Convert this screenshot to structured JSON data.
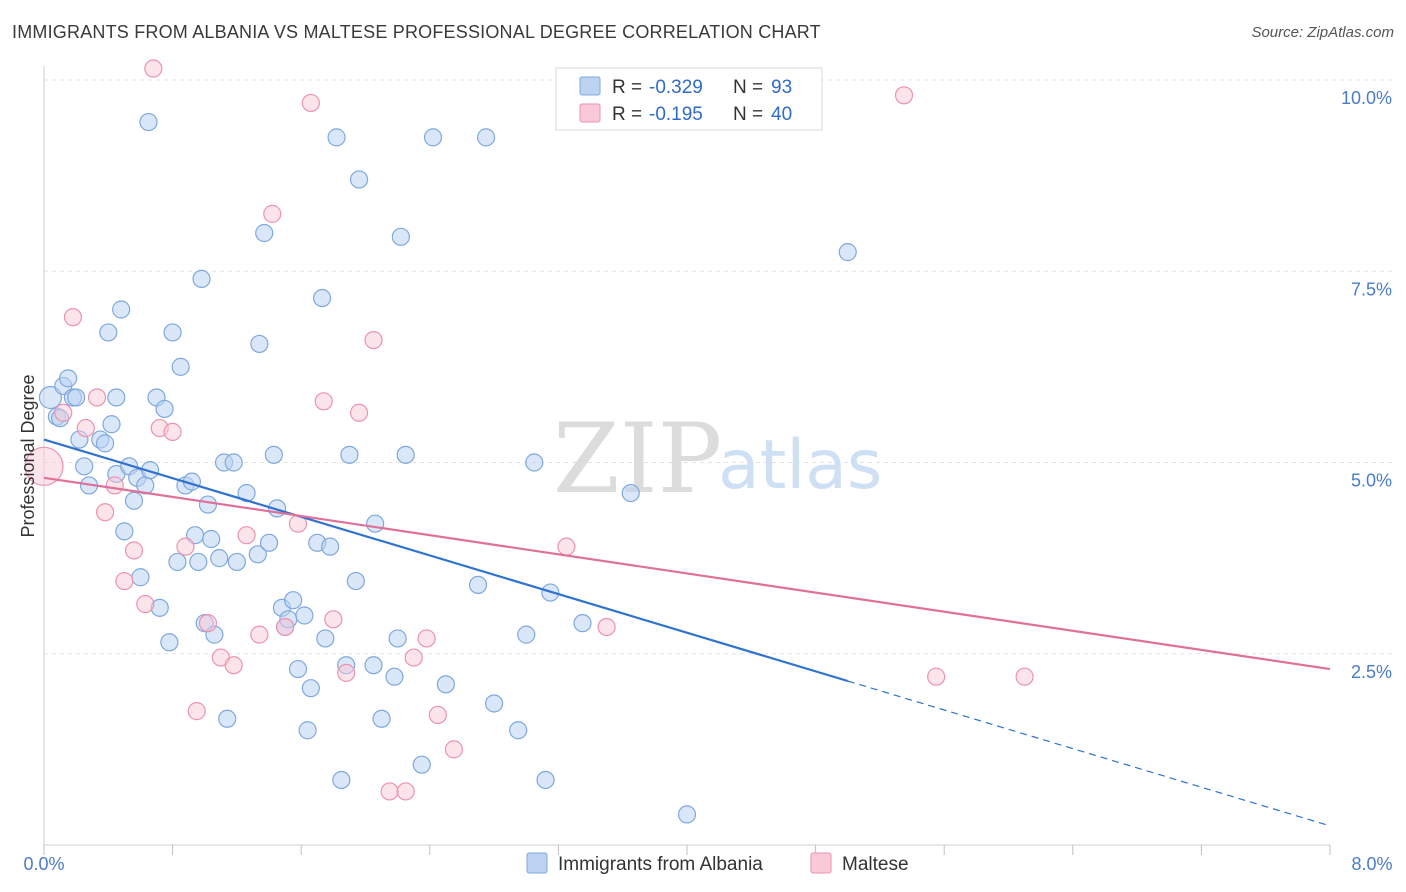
{
  "header": {
    "title": "IMMIGRANTS FROM ALBANIA VS MALTESE PROFESSIONAL DEGREE CORRELATION CHART",
    "source": "Source: ZipAtlas.com"
  },
  "watermark": {
    "zip": "ZIP",
    "atlas": "atlas"
  },
  "legend": {
    "rows": [
      {
        "r_label": "R =",
        "r_value": "-0.329",
        "n_label": "N =",
        "n_value": "93"
      },
      {
        "r_label": "R =",
        "r_value": "-0.195",
        "n_label": "N =",
        "n_value": "40"
      }
    ]
  },
  "colors": {
    "albania_fill": "#bcd3f2",
    "albania_stroke": "#7fa8de",
    "albania_line": "#2f72d0",
    "maltese_fill": "#f9c9d8",
    "maltese_stroke": "#ec93b0",
    "maltese_line": "#e0709a",
    "grid": "#e3e3e3"
  },
  "chart_data": {
    "type": "scatter",
    "title": "IMMIGRANTS FROM ALBANIA VS MALTESE PROFESSIONAL DEGREE CORRELATION CHART",
    "xlabel": "",
    "ylabel": "Professional Degree",
    "xlim": [
      0,
      8
    ],
    "ylim": [
      0,
      10
    ],
    "x_ticks": [
      "0.0%",
      "8.0%"
    ],
    "y_ticks": [
      {
        "value": 2.5,
        "label": "2.5%"
      },
      {
        "value": 5.0,
        "label": "5.0%"
      },
      {
        "value": 7.5,
        "label": "7.5%"
      },
      {
        "value": 10.0,
        "label": "10.0%"
      }
    ],
    "grid": true,
    "legend_position": "top-center",
    "series": [
      {
        "name": "Immigrants from Albania",
        "r": -0.329,
        "n": 93,
        "trend": {
          "x0": 0.0,
          "y0": 5.3,
          "x_solid_end": 5.0,
          "x1": 8.0,
          "y1": 0.25
        },
        "points": [
          [
            0.04,
            5.85
          ],
          [
            0.08,
            5.6
          ],
          [
            0.1,
            5.58
          ],
          [
            0.12,
            6.0
          ],
          [
            0.15,
            6.1
          ],
          [
            0.18,
            5.85
          ],
          [
            0.2,
            5.85
          ],
          [
            0.22,
            5.3
          ],
          [
            0.25,
            4.95
          ],
          [
            0.28,
            4.7
          ],
          [
            0.35,
            5.3
          ],
          [
            0.38,
            5.25
          ],
          [
            0.4,
            6.7
          ],
          [
            0.42,
            5.5
          ],
          [
            0.45,
            4.85
          ],
          [
            0.45,
            5.85
          ],
          [
            0.48,
            7.0
          ],
          [
            0.5,
            4.1
          ],
          [
            0.53,
            4.95
          ],
          [
            0.56,
            4.5
          ],
          [
            0.58,
            4.8
          ],
          [
            0.6,
            3.5
          ],
          [
            0.63,
            4.7
          ],
          [
            0.66,
            4.9
          ],
          [
            0.7,
            5.85
          ],
          [
            0.72,
            3.1
          ],
          [
            0.75,
            5.7
          ],
          [
            0.78,
            2.65
          ],
          [
            0.8,
            6.7
          ],
          [
            0.83,
            3.7
          ],
          [
            0.85,
            6.25
          ],
          [
            0.88,
            4.7
          ],
          [
            0.92,
            4.75
          ],
          [
            0.94,
            4.05
          ],
          [
            0.96,
            3.7
          ],
          [
            0.98,
            7.4
          ],
          [
            1.0,
            2.9
          ],
          [
            1.02,
            4.45
          ],
          [
            1.04,
            4.0
          ],
          [
            1.06,
            2.75
          ],
          [
            1.09,
            3.75
          ],
          [
            1.12,
            5.0
          ],
          [
            1.14,
            1.65
          ],
          [
            1.18,
            5.0
          ],
          [
            1.2,
            3.7
          ],
          [
            1.26,
            4.6
          ],
          [
            1.33,
            3.8
          ],
          [
            1.34,
            6.55
          ],
          [
            1.37,
            8.0
          ],
          [
            1.4,
            3.95
          ],
          [
            1.43,
            5.1
          ],
          [
            1.45,
            4.4
          ],
          [
            1.48,
            3.1
          ],
          [
            1.5,
            2.85
          ],
          [
            1.52,
            2.95
          ],
          [
            1.55,
            3.2
          ],
          [
            1.58,
            2.3
          ],
          [
            1.62,
            3.0
          ],
          [
            1.64,
            1.5
          ],
          [
            1.66,
            2.05
          ],
          [
            1.7,
            3.95
          ],
          [
            1.73,
            7.15
          ],
          [
            1.75,
            2.7
          ],
          [
            1.78,
            3.9
          ],
          [
            1.82,
            9.25
          ],
          [
            1.85,
            0.85
          ],
          [
            1.88,
            2.35
          ],
          [
            1.9,
            5.1
          ],
          [
            1.94,
            3.45
          ],
          [
            1.96,
            8.7
          ],
          [
            2.05,
            2.35
          ],
          [
            2.06,
            4.2
          ],
          [
            2.1,
            1.65
          ],
          [
            2.18,
            2.2
          ],
          [
            2.2,
            2.7
          ],
          [
            2.22,
            7.95
          ],
          [
            2.25,
            5.1
          ],
          [
            2.35,
            1.05
          ],
          [
            2.42,
            9.25
          ],
          [
            2.5,
            2.1
          ],
          [
            2.7,
            3.4
          ],
          [
            2.8,
            1.85
          ],
          [
            2.95,
            1.5
          ],
          [
            3.0,
            2.75
          ],
          [
            3.05,
            5.0
          ],
          [
            3.12,
            0.85
          ],
          [
            3.15,
            3.3
          ],
          [
            3.35,
            2.9
          ],
          [
            3.65,
            4.6
          ],
          [
            4.0,
            0.4
          ],
          [
            5.0,
            7.75
          ],
          [
            0.65,
            9.45
          ],
          [
            2.75,
            9.25
          ]
        ]
      },
      {
        "name": "Maltese",
        "r": -0.195,
        "n": 40,
        "trend": {
          "x0": 0.0,
          "y0": 4.8,
          "x1": 8.0,
          "y1": 2.3
        },
        "points": [
          [
            0.0,
            4.95
          ],
          [
            0.12,
            5.65
          ],
          [
            0.18,
            6.9
          ],
          [
            0.26,
            5.45
          ],
          [
            0.33,
            5.85
          ],
          [
            0.38,
            4.35
          ],
          [
            0.44,
            4.7
          ],
          [
            0.5,
            3.45
          ],
          [
            0.56,
            3.85
          ],
          [
            0.63,
            3.15
          ],
          [
            0.68,
            10.15
          ],
          [
            0.72,
            5.45
          ],
          [
            0.8,
            5.4
          ],
          [
            0.88,
            3.9
          ],
          [
            0.95,
            1.75
          ],
          [
            1.02,
            2.9
          ],
          [
            1.1,
            2.45
          ],
          [
            1.18,
            2.35
          ],
          [
            1.26,
            4.05
          ],
          [
            1.34,
            2.75
          ],
          [
            1.42,
            8.25
          ],
          [
            1.5,
            2.85
          ],
          [
            1.58,
            4.2
          ],
          [
            1.66,
            9.7
          ],
          [
            1.74,
            5.8
          ],
          [
            1.8,
            2.95
          ],
          [
            1.88,
            2.25
          ],
          [
            1.96,
            5.65
          ],
          [
            2.05,
            6.6
          ],
          [
            2.15,
            0.7
          ],
          [
            2.25,
            0.7
          ],
          [
            2.3,
            2.45
          ],
          [
            2.38,
            2.7
          ],
          [
            2.45,
            1.7
          ],
          [
            2.55,
            1.25
          ],
          [
            3.25,
            3.9
          ],
          [
            3.5,
            2.85
          ],
          [
            5.35,
            9.8
          ],
          [
            5.55,
            2.2
          ],
          [
            6.1,
            2.2
          ]
        ]
      }
    ]
  }
}
